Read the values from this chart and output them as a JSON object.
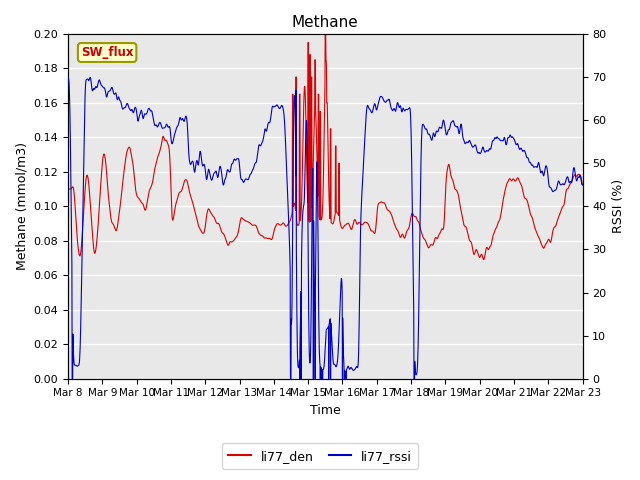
{
  "title": "Methane",
  "xlabel": "Time",
  "ylabel_left": "Methane (mmol/m3)",
  "ylabel_right": "RSSI (%)",
  "ylim_left": [
    0.0,
    0.2
  ],
  "ylim_right": [
    0,
    80
  ],
  "yticks_left": [
    0.0,
    0.02,
    0.04,
    0.06,
    0.08,
    0.1,
    0.12,
    0.14,
    0.16,
    0.18,
    0.2
  ],
  "yticks_right": [
    0,
    10,
    20,
    30,
    40,
    50,
    60,
    70,
    80
  ],
  "color_red": "#dd0000",
  "color_blue": "#0000cc",
  "legend_labels": [
    "li77_den",
    "li77_rssi"
  ],
  "sw_flux_label": "SW_flux",
  "bg_color": "#e8e8e8",
  "fig_bg": "#ffffff",
  "title_fontsize": 11,
  "axis_fontsize": 9,
  "tick_fontsize": 8,
  "legend_fontsize": 9,
  "xtick_labels": [
    "Mar 8",
    "Mar 9",
    "Mar 10",
    "Mar 11",
    "Mar 12",
    "Mar 13",
    "Mar 14",
    "Mar 15",
    "Mar 16",
    "Mar 17",
    "Mar 18",
    "Mar 19",
    "Mar 20",
    "Mar 21",
    "Mar 22",
    "Mar 23"
  ],
  "n_points": 2000
}
